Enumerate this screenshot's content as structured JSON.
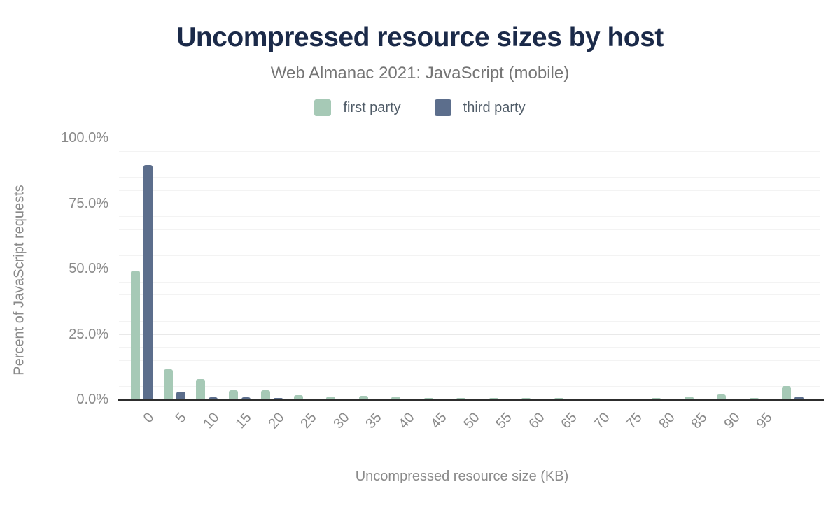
{
  "title": "Uncompressed resource sizes by host",
  "subtitle": "Web Almanac 2021: JavaScript (mobile)",
  "legend": [
    {
      "label": "first party",
      "color": "#a6c9b6"
    },
    {
      "label": "third party",
      "color": "#5c6e8c"
    }
  ],
  "colors": {
    "title": "#1b2a49",
    "subtitle": "#757575",
    "tick_text": "#8a8a8a",
    "axis_line": "#2d2d2d",
    "first_party": "#a6c9b6",
    "third_party": "#5c6e8c"
  },
  "chart_data": {
    "type": "bar",
    "title": "Uncompressed resource sizes by host",
    "subtitle": "Web Almanac 2021: JavaScript (mobile)",
    "xlabel": "Uncompressed resource size (KB)",
    "ylabel": "Percent of JavaScript requests",
    "ylim": [
      0,
      100
    ],
    "grid": "horizontal lines every 5%, labeled every 25%",
    "legend_position": "top",
    "y_ticks": [
      {
        "label": "0.0%",
        "value": 0
      },
      {
        "label": "25.0%",
        "value": 25
      },
      {
        "label": "50.0%",
        "value": 50
      },
      {
        "label": "75.0%",
        "value": 75
      },
      {
        "label": "100.0%",
        "value": 100
      }
    ],
    "categories": [
      "0",
      "5",
      "10",
      "15",
      "20",
      "25",
      "30",
      "35",
      "40",
      "45",
      "50",
      "55",
      "60",
      "65",
      "70",
      "75",
      "80",
      "85",
      "90",
      "95",
      ""
    ],
    "series": [
      {
        "name": "first party",
        "color": "#a6c9b6",
        "values": [
          49.1,
          11.4,
          7.7,
          3.5,
          3.6,
          1.5,
          1.0,
          1.4,
          1.0,
          0.6,
          0.55,
          0.6,
          0.55,
          0.6,
          0.1,
          0.1,
          0.5,
          1.1,
          2.0,
          0.6,
          5.1
        ]
      },
      {
        "name": "third party",
        "color": "#5c6e8c",
        "values": [
          89.6,
          3.0,
          0.7,
          0.7,
          0.55,
          0.25,
          0.15,
          0.2,
          0.1,
          0.1,
          0.1,
          0.1,
          0.1,
          0.1,
          0.05,
          0.05,
          0.1,
          0.15,
          0.2,
          0.1,
          1.1
        ]
      }
    ]
  }
}
